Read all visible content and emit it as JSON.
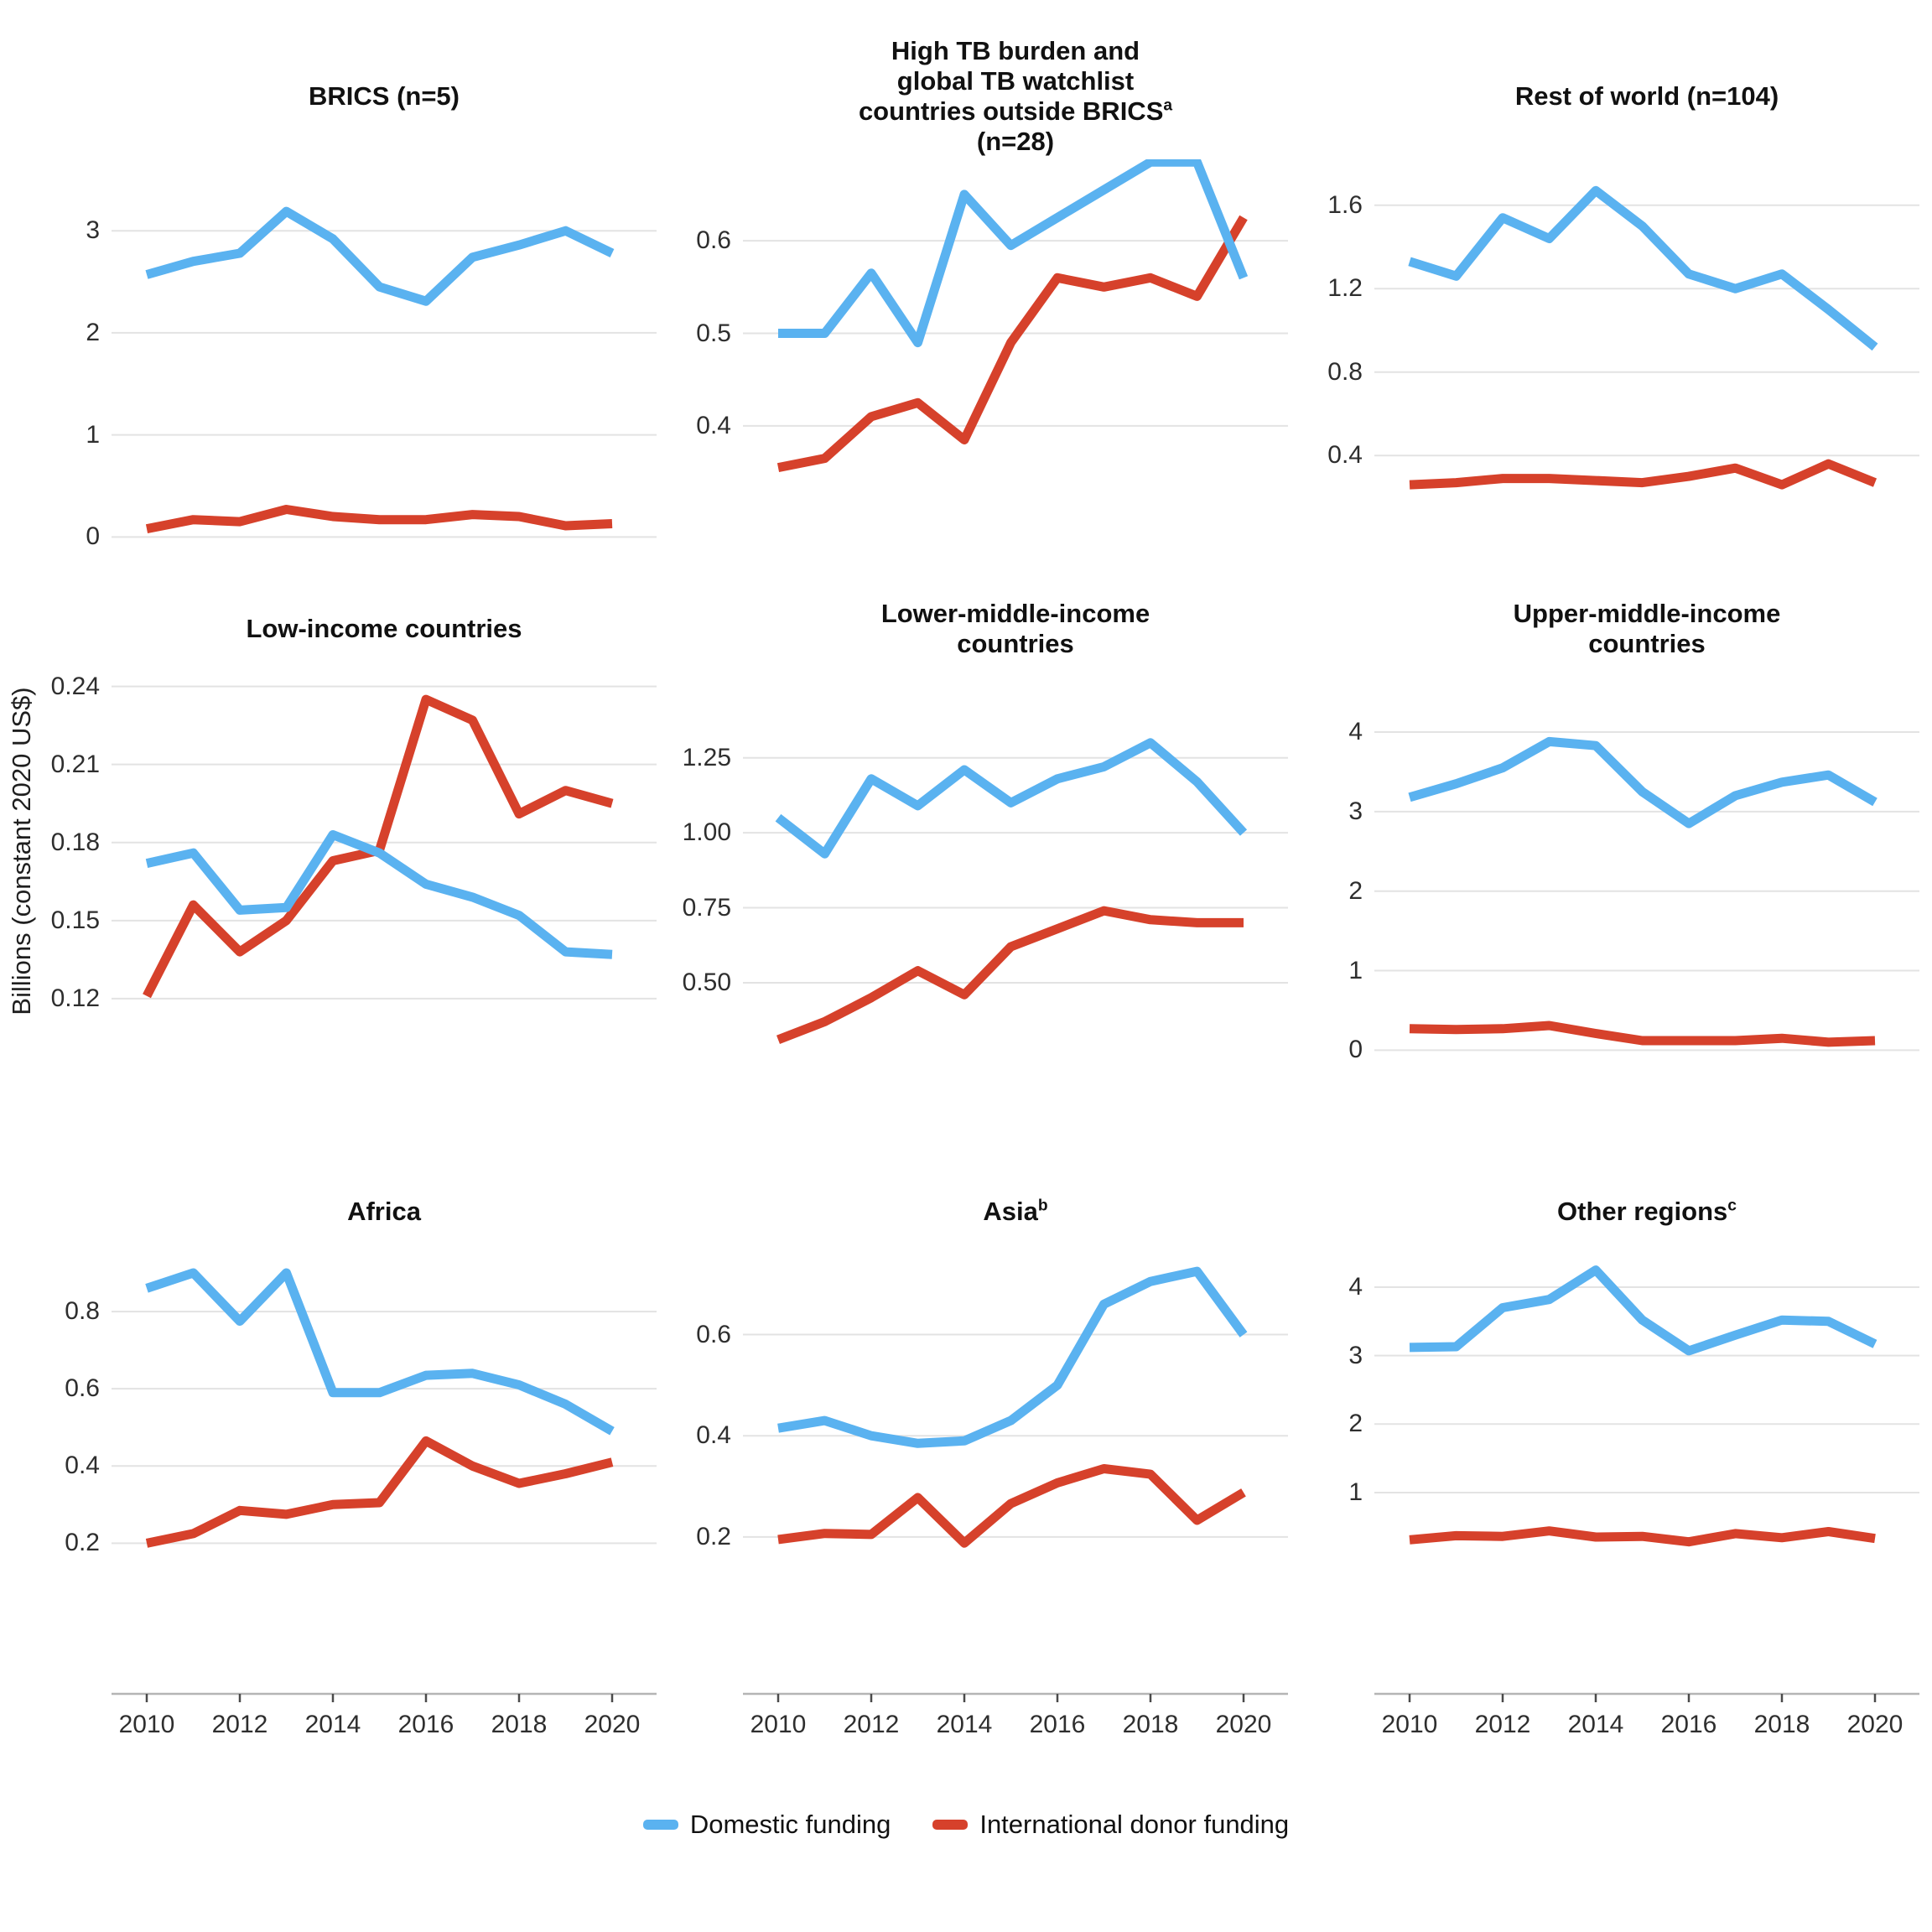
{
  "figure": {
    "y_axis_label": "Billions (constant 2020 US$)",
    "colors": {
      "domestic": "#5AB2F0",
      "donor": "#D6412B",
      "gridline": "#E3E3E3",
      "axis_line": "#B5B5B5",
      "tick_mark": "#4a4a4a",
      "title_text": "#111111",
      "tick_text": "#2e2e2e"
    },
    "legend": [
      {
        "label": "Domestic funding",
        "color_key": "domestic"
      },
      {
        "label": "International donor funding",
        "color_key": "donor"
      }
    ],
    "x_tick_labels": [
      "2010",
      "2012",
      "2014",
      "2016",
      "2018",
      "2020"
    ]
  },
  "chart_data": [
    {
      "type": "line",
      "title_lines": [
        {
          "text": "BRICS (n=5)"
        }
      ],
      "x": [
        2010,
        2011,
        2012,
        2013,
        2014,
        2015,
        2016,
        2017,
        2018,
        2019,
        2020
      ],
      "series": [
        {
          "name": "Domestic funding",
          "values": [
            2.57,
            2.7,
            2.78,
            3.19,
            2.92,
            2.45,
            2.31,
            2.74,
            2.86,
            3.0,
            2.78
          ]
        },
        {
          "name": "International donor funding",
          "values": [
            0.08,
            0.17,
            0.15,
            0.27,
            0.2,
            0.17,
            0.17,
            0.22,
            0.2,
            0.11,
            0.13
          ]
        }
      ],
      "y_ticks": [
        0,
        1,
        2,
        3
      ],
      "y_tick_labels": [
        "0",
        "1",
        "2",
        "3"
      ],
      "ylim": [
        -0.49,
        3.7
      ],
      "show_x_axis": false
    },
    {
      "type": "line",
      "title_lines": [
        {
          "text": "High TB burden and"
        },
        {
          "text": "global TB watchlist"
        },
        {
          "text": "countries outside BRICS",
          "sup": "a"
        },
        {
          "text": "(n=28)"
        }
      ],
      "x": [
        2010,
        2011,
        2012,
        2013,
        2014,
        2015,
        2016,
        2017,
        2018,
        2019,
        2020
      ],
      "series": [
        {
          "name": "Domestic funding",
          "values": [
            0.5,
            0.5,
            0.565,
            0.49,
            0.65,
            0.595,
            0.625,
            0.655,
            0.685,
            0.685,
            0.56
          ]
        },
        {
          "name": "International donor funding",
          "values": [
            0.355,
            0.365,
            0.41,
            0.425,
            0.385,
            0.49,
            0.56,
            0.55,
            0.56,
            0.54,
            0.625
          ]
        }
      ],
      "y_ticks": [
        0.4,
        0.5,
        0.6
      ],
      "y_tick_labels": [
        "0.4",
        "0.5",
        "0.6"
      ],
      "ylim": [
        0.226,
        0.688
      ],
      "show_x_axis": false
    },
    {
      "type": "line",
      "title_lines": [
        {
          "text": "Rest of world (n=104)"
        }
      ],
      "x": [
        2010,
        2011,
        2012,
        2013,
        2014,
        2015,
        2016,
        2017,
        2018,
        2019,
        2020
      ],
      "series": [
        {
          "name": "Domestic funding",
          "values": [
            1.33,
            1.26,
            1.54,
            1.44,
            1.67,
            1.5,
            1.27,
            1.2,
            1.27,
            1.1,
            0.92
          ]
        },
        {
          "name": "International donor funding",
          "values": [
            0.26,
            0.27,
            0.29,
            0.29,
            0.28,
            0.27,
            0.3,
            0.34,
            0.26,
            0.36,
            0.27
          ]
        }
      ],
      "y_ticks": [
        0.4,
        0.8,
        1.2,
        1.6
      ],
      "y_tick_labels": [
        "0.4",
        "0.8",
        "1.2",
        "1.6"
      ],
      "ylim": [
        -0.23,
        1.82
      ],
      "show_x_axis": false
    },
    {
      "type": "line",
      "title_lines": [
        {
          "text": "Low-income countries"
        }
      ],
      "x": [
        2010,
        2011,
        2012,
        2013,
        2014,
        2015,
        2016,
        2017,
        2018,
        2019,
        2020
      ],
      "series": [
        {
          "name": "Domestic funding",
          "values": [
            0.172,
            0.176,
            0.154,
            0.155,
            0.183,
            0.176,
            0.164,
            0.159,
            0.152,
            0.138,
            0.137
          ]
        },
        {
          "name": "International donor funding",
          "values": [
            0.121,
            0.156,
            0.138,
            0.15,
            0.173,
            0.177,
            0.235,
            0.227,
            0.191,
            0.2,
            0.195
          ]
        }
      ],
      "y_ticks": [
        0.12,
        0.15,
        0.18,
        0.21,
        0.24
      ],
      "y_tick_labels": [
        "0.12",
        "0.15",
        "0.18",
        "0.21",
        "0.24"
      ],
      "ylim": [
        0.08,
        0.246
      ],
      "show_x_axis": false
    },
    {
      "type": "line",
      "title_lines": [
        {
          "text": "Lower-middle-income"
        },
        {
          "text": "countries"
        }
      ],
      "x": [
        2010,
        2011,
        2012,
        2013,
        2014,
        2015,
        2016,
        2017,
        2018,
        2019,
        2020
      ],
      "series": [
        {
          "name": "Domestic funding",
          "values": [
            1.05,
            0.93,
            1.18,
            1.09,
            1.21,
            1.1,
            1.18,
            1.22,
            1.3,
            1.17,
            1.0
          ]
        },
        {
          "name": "International donor funding",
          "values": [
            0.31,
            0.37,
            0.45,
            0.54,
            0.46,
            0.62,
            0.68,
            0.74,
            0.71,
            0.7,
            0.7
          ]
        }
      ],
      "y_ticks": [
        0.5,
        0.75,
        1.0,
        1.25
      ],
      "y_tick_labels": [
        "0.50",
        "0.75",
        "1.00",
        "1.25"
      ],
      "ylim": [
        0.1,
        1.54
      ],
      "show_x_axis": false
    },
    {
      "type": "line",
      "title_lines": [
        {
          "text": "Upper-middle-income"
        },
        {
          "text": "countries"
        }
      ],
      "x": [
        2010,
        2011,
        2012,
        2013,
        2014,
        2015,
        2016,
        2017,
        2018,
        2019,
        2020
      ],
      "series": [
        {
          "name": "Domestic funding",
          "values": [
            3.18,
            3.35,
            3.55,
            3.88,
            3.83,
            3.25,
            2.85,
            3.2,
            3.37,
            3.46,
            3.12
          ]
        },
        {
          "name": "International donor funding",
          "values": [
            0.27,
            0.26,
            0.27,
            0.31,
            0.21,
            0.12,
            0.12,
            0.12,
            0.15,
            0.1,
            0.12
          ]
        }
      ],
      "y_ticks": [
        0,
        1,
        2,
        3,
        4
      ],
      "y_tick_labels": [
        "0",
        "1",
        "2",
        "3",
        "4"
      ],
      "ylim": [
        -0.66,
        4.77
      ],
      "show_x_axis": false
    },
    {
      "type": "line",
      "title_lines": [
        {
          "text": "Africa"
        }
      ],
      "x": [
        2010,
        2011,
        2012,
        2013,
        2014,
        2015,
        2016,
        2017,
        2018,
        2019,
        2020
      ],
      "series": [
        {
          "name": "Domestic funding",
          "values": [
            0.86,
            0.9,
            0.775,
            0.9,
            0.59,
            0.59,
            0.635,
            0.64,
            0.61,
            0.56,
            0.49
          ]
        },
        {
          "name": "International donor funding",
          "values": [
            0.2,
            0.225,
            0.285,
            0.275,
            0.3,
            0.305,
            0.465,
            0.4,
            0.355,
            0.38,
            0.41
          ]
        }
      ],
      "y_ticks": [
        0.2,
        0.4,
        0.6,
        0.8
      ],
      "y_tick_labels": [
        "0.2",
        "0.4",
        "0.6",
        "0.8"
      ],
      "ylim": [
        -0.19,
        0.95
      ],
      "show_x_axis": true
    },
    {
      "type": "line",
      "title_lines": [
        {
          "text": "Asia",
          "sup": "b"
        }
      ],
      "x": [
        2010,
        2011,
        2012,
        2013,
        2014,
        2015,
        2016,
        2017,
        2018,
        2019,
        2020
      ],
      "series": [
        {
          "name": "Domestic funding",
          "values": [
            0.415,
            0.43,
            0.4,
            0.385,
            0.39,
            0.43,
            0.5,
            0.66,
            0.705,
            0.725,
            0.6
          ]
        },
        {
          "name": "International donor funding",
          "values": [
            0.195,
            0.207,
            0.205,
            0.278,
            0.188,
            0.266,
            0.307,
            0.335,
            0.324,
            0.233,
            0.288
          ]
        }
      ],
      "y_ticks": [
        0.2,
        0.4,
        0.6
      ],
      "y_tick_labels": [
        "0.2",
        "0.4",
        "0.6"
      ],
      "ylim": [
        -0.11,
        0.76
      ],
      "show_x_axis": true
    },
    {
      "type": "line",
      "title_lines": [
        {
          "text": "Other regions",
          "sup": "c"
        }
      ],
      "x": [
        2010,
        2011,
        2012,
        2013,
        2014,
        2015,
        2016,
        2017,
        2018,
        2019,
        2020
      ],
      "series": [
        {
          "name": "Domestic funding",
          "values": [
            3.12,
            3.13,
            3.7,
            3.82,
            4.25,
            3.52,
            3.07,
            3.3,
            3.52,
            3.5,
            3.17
          ]
        },
        {
          "name": "International donor funding",
          "values": [
            0.31,
            0.37,
            0.36,
            0.44,
            0.35,
            0.36,
            0.28,
            0.4,
            0.34,
            0.43,
            0.33
          ]
        }
      ],
      "y_ticks": [
        1,
        2,
        3,
        4
      ],
      "y_tick_labels": [
        "1",
        "2",
        "3",
        "4"
      ],
      "ylim": [
        -1.94,
        4.49
      ],
      "show_x_axis": true
    }
  ]
}
